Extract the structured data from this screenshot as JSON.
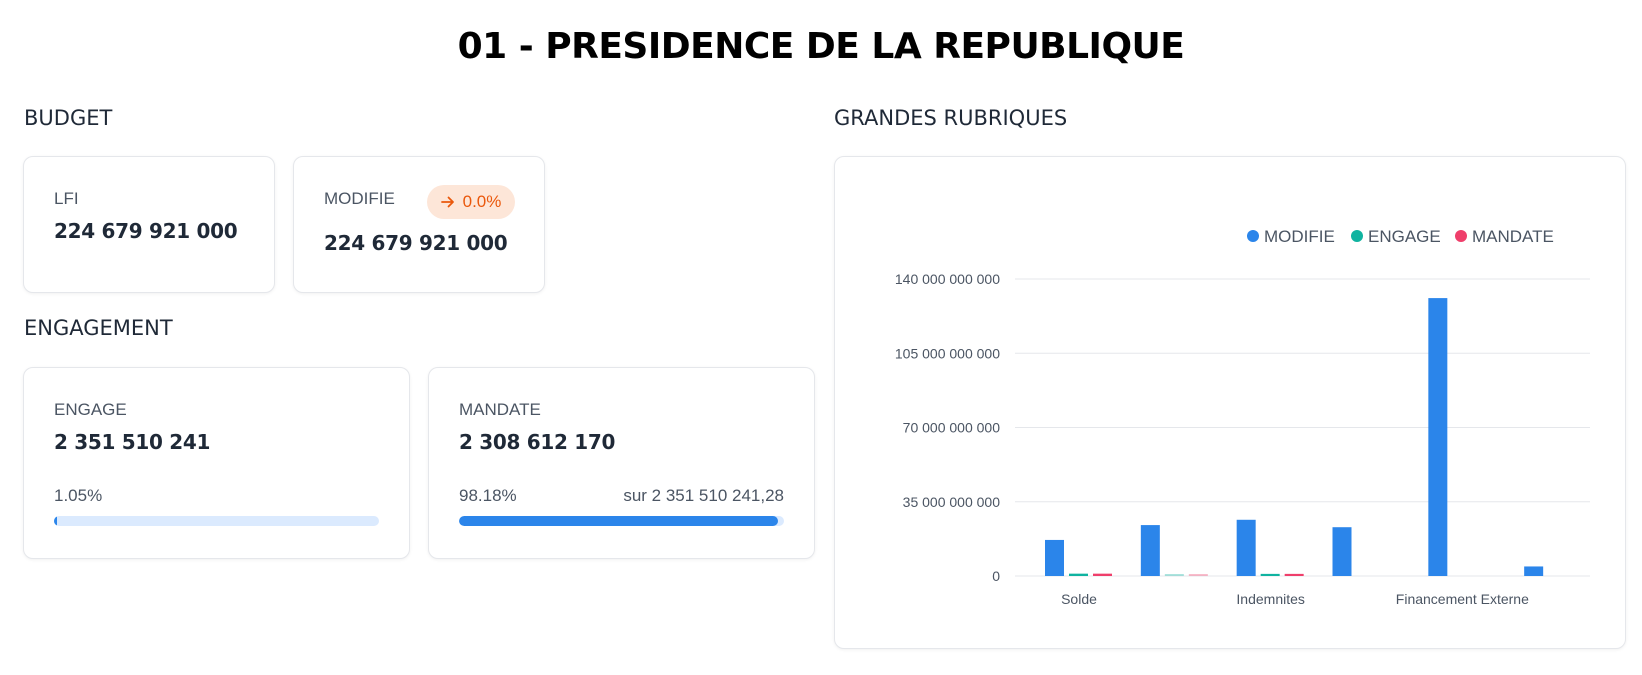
{
  "title": "01 - PRESIDENCE DE LA REPUBLIQUE",
  "budget": {
    "section_title": "BUDGET",
    "lfi": {
      "label": "LFI",
      "value": "224 679 921 000"
    },
    "modifie": {
      "label": "MODIFIE",
      "value": "224 679 921 000",
      "badge": "0.0%",
      "badge_icon": "arrow-right-icon",
      "badge_color": "#ea580c"
    }
  },
  "engagement": {
    "section_title": "ENGAGEMENT",
    "engage": {
      "label": "ENGAGE",
      "value": "2 351 510 241",
      "percent_text": "1.05%",
      "progress": 1.05
    },
    "mandate": {
      "label": "MANDATE",
      "value": "2 308 612 170",
      "percent_text": "98.18%",
      "sur_text": "sur 2 351 510 241,28",
      "progress": 98.18
    }
  },
  "rubriques": {
    "section_title": "GRANDES RUBRIQUES"
  },
  "chart_data": {
    "type": "bar",
    "title": "",
    "xlabel": "",
    "ylabel": "",
    "ylim": [
      0,
      140000000000
    ],
    "yticks": [
      0,
      35000000000,
      70000000000,
      105000000000,
      140000000000
    ],
    "ytick_labels": [
      "0",
      "35 000 000 000",
      "70 000 000 000",
      "105 000 000 000",
      "140 000 000 000"
    ],
    "categories": [
      "Solde",
      "",
      "Indemnites",
      "",
      "Financement Externe",
      ""
    ],
    "legend_position": "top-right",
    "grid": true,
    "series": [
      {
        "name": "MODIFIE",
        "color": "#2b85ea",
        "values": [
          17000000000,
          24000000000,
          26500000000,
          23000000000,
          131000000000,
          4500000000
        ]
      },
      {
        "name": "ENGAGE",
        "color": "#10b3a0",
        "values": [
          1100000000,
          300000000,
          1000000000,
          0,
          0,
          0
        ]
      },
      {
        "name": "MANDATE",
        "color": "#ef3f6b",
        "values": [
          1100000000,
          300000000,
          1000000000,
          0,
          0,
          0
        ]
      }
    ]
  }
}
